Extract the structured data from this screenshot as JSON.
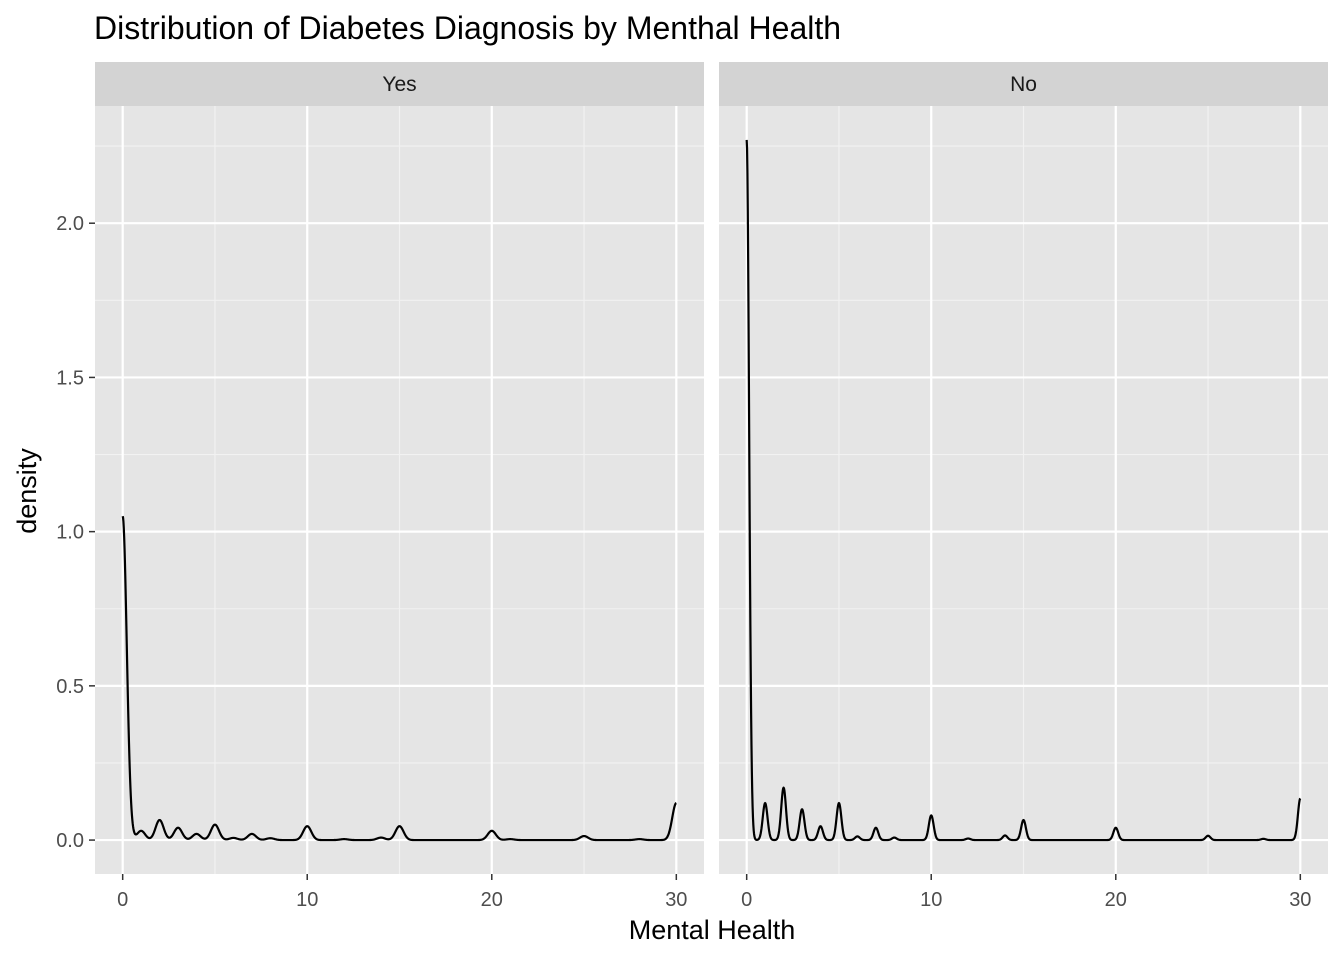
{
  "chart_data": {
    "type": "area",
    "title": "Distribution of Diabetes Diagnosis by Menthal Health",
    "xlabel": "Mental Health",
    "ylabel": "density",
    "xlim": [
      -1.5,
      31.5
    ],
    "ylim": [
      -0.11,
      2.38
    ],
    "x_ticks": [
      0,
      10,
      20,
      30
    ],
    "y_ticks": [
      0.0,
      0.5,
      1.0,
      1.5,
      2.0
    ],
    "y_tick_labels": [
      "0.0",
      "0.5",
      "1.0",
      "1.5",
      "2.0"
    ],
    "grid": true,
    "panel_background": "#e5e5e5",
    "strip_background": "#d3d3d3",
    "line_color": "#000000",
    "facets": [
      {
        "label": "Yes",
        "bandwidth": 0.22,
        "peaks": [
          {
            "x": 0,
            "y": 1.05
          },
          {
            "x": 1,
            "y": 0.03
          },
          {
            "x": 2,
            "y": 0.065
          },
          {
            "x": 3,
            "y": 0.04
          },
          {
            "x": 4,
            "y": 0.02
          },
          {
            "x": 5,
            "y": 0.05
          },
          {
            "x": 6,
            "y": 0.007
          },
          {
            "x": 7,
            "y": 0.02
          },
          {
            "x": 8,
            "y": 0.006
          },
          {
            "x": 10,
            "y": 0.045
          },
          {
            "x": 12,
            "y": 0.003
          },
          {
            "x": 14,
            "y": 0.008
          },
          {
            "x": 15,
            "y": 0.045
          },
          {
            "x": 20,
            "y": 0.03
          },
          {
            "x": 21,
            "y": 0.003
          },
          {
            "x": 25,
            "y": 0.013
          },
          {
            "x": 28,
            "y": 0.003
          },
          {
            "x": 30,
            "y": 0.12
          }
        ]
      },
      {
        "label": "No",
        "bandwidth": 0.13,
        "peaks": [
          {
            "x": 0,
            "y": 2.27
          },
          {
            "x": 1,
            "y": 0.12
          },
          {
            "x": 2,
            "y": 0.17
          },
          {
            "x": 3,
            "y": 0.1
          },
          {
            "x": 4,
            "y": 0.045
          },
          {
            "x": 5,
            "y": 0.12
          },
          {
            "x": 6,
            "y": 0.012
          },
          {
            "x": 7,
            "y": 0.04
          },
          {
            "x": 8,
            "y": 0.008
          },
          {
            "x": 10,
            "y": 0.08
          },
          {
            "x": 12,
            "y": 0.005
          },
          {
            "x": 14,
            "y": 0.015
          },
          {
            "x": 15,
            "y": 0.065
          },
          {
            "x": 20,
            "y": 0.04
          },
          {
            "x": 25,
            "y": 0.014
          },
          {
            "x": 28,
            "y": 0.004
          },
          {
            "x": 30,
            "y": 0.135
          }
        ]
      }
    ]
  }
}
